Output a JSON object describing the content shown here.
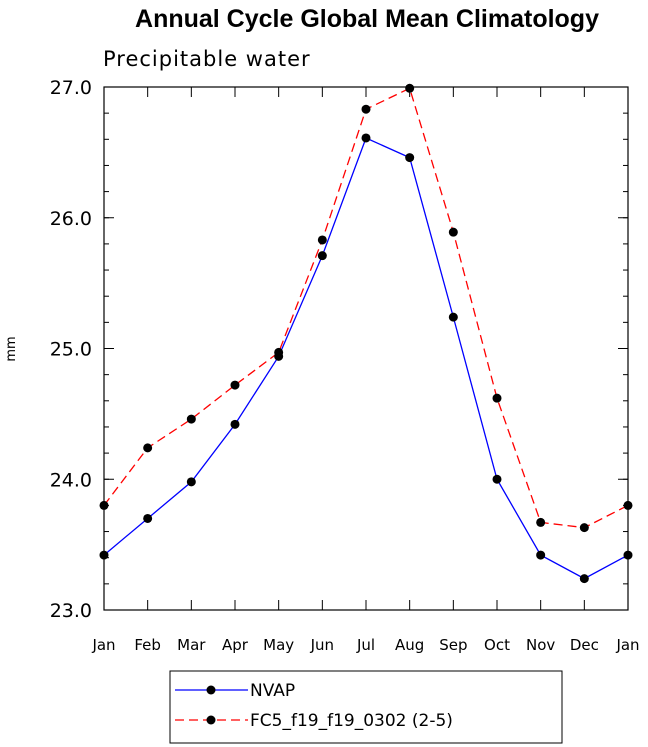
{
  "chart_data": {
    "type": "line",
    "title": "Annual Cycle Global Mean Climatology",
    "subtitle": "Precipitable water",
    "ylabel": "mm",
    "xlabel": "",
    "categories": [
      "Jan",
      "Feb",
      "Mar",
      "Apr",
      "May",
      "Jun",
      "Jul",
      "Aug",
      "Sep",
      "Oct",
      "Nov",
      "Dec",
      "Jan"
    ],
    "ylim": [
      23.0,
      27.0
    ],
    "yticks": [
      23.0,
      24.0,
      25.0,
      26.0,
      27.0
    ],
    "ytick_labels": [
      "23.0",
      "24.0",
      "25.0",
      "26.0",
      "27.0"
    ],
    "grid": false,
    "legend_position": "bottom",
    "series": [
      {
        "name": "NVAP",
        "color": "#0000ff",
        "line_style": "solid",
        "marker": "filled-circle",
        "values": [
          23.42,
          23.7,
          23.98,
          24.42,
          24.94,
          25.71,
          26.61,
          26.46,
          25.24,
          24.0,
          23.42,
          23.24,
          23.42
        ]
      },
      {
        "name": "FC5_f19_f19_0302 (2-5)",
        "color": "#ff0000",
        "line_style": "dashed",
        "marker": "filled-circle",
        "values": [
          23.8,
          24.24,
          24.46,
          24.72,
          24.97,
          25.83,
          26.83,
          26.99,
          25.89,
          24.62,
          23.67,
          23.63,
          23.8
        ]
      }
    ]
  }
}
